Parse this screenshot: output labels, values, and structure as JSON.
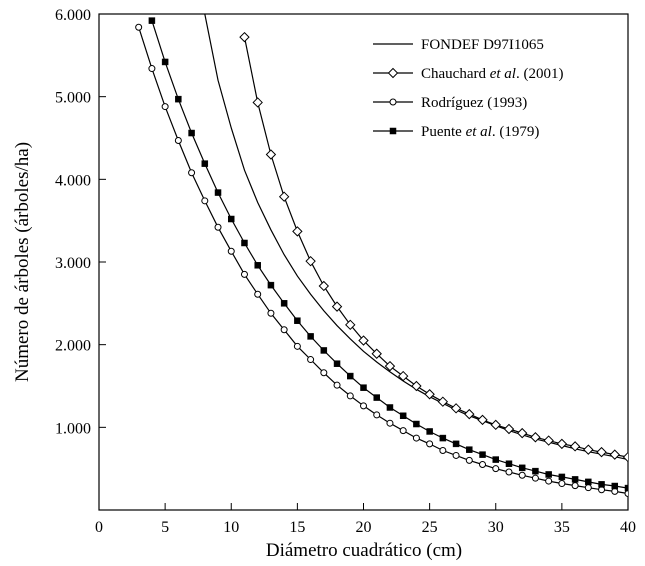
{
  "chart_data": {
    "type": "line",
    "title": "",
    "xlabel": "Diámetro cuadrático (cm)",
    "ylabel": "Número de árboles (árboles/ha)",
    "xlim": [
      0,
      40
    ],
    "ylim": [
      0,
      6000
    ],
    "x_ticks": [
      0,
      5,
      10,
      15,
      20,
      25,
      30,
      35,
      40
    ],
    "x_tick_labels": [
      "0",
      "5",
      "10",
      "15",
      "20",
      "25",
      "30",
      "35",
      "40"
    ],
    "y_ticks": [
      1000,
      2000,
      3000,
      4000,
      5000,
      6000
    ],
    "y_tick_labels": [
      "1.000",
      "2.000",
      "3.000",
      "4.000",
      "5.000",
      "6.000"
    ],
    "grid": false,
    "legend_position": "top-right",
    "series": [
      {
        "name": "FONDEF D97I1065",
        "marker": "none",
        "x": [
          8,
          9,
          10,
          11,
          12,
          13,
          14,
          15,
          16,
          17,
          18,
          19,
          20,
          21,
          22,
          23,
          24,
          25,
          26,
          27,
          28,
          29,
          30,
          31,
          32,
          33,
          34,
          35,
          36,
          37,
          38,
          39,
          40
        ],
        "values": [
          6000,
          5200,
          4620,
          4110,
          3720,
          3390,
          3090,
          2830,
          2610,
          2410,
          2230,
          2070,
          1920,
          1790,
          1670,
          1560,
          1460,
          1370,
          1290,
          1210,
          1140,
          1080,
          1020,
          960,
          910,
          860,
          820,
          780,
          740,
          705,
          675,
          645,
          610
        ]
      },
      {
        "name": "Chauchard et al. (2001)",
        "name_parts": [
          "Chauchard ",
          "et al",
          ". (2001)"
        ],
        "marker": "diamond",
        "x": [
          11,
          12,
          13,
          14,
          15,
          16,
          17,
          18,
          19,
          20,
          21,
          22,
          23,
          24,
          25,
          26,
          27,
          28,
          29,
          30,
          31,
          32,
          33,
          34,
          35,
          36,
          37,
          38,
          39,
          40
        ],
        "values": [
          5720,
          4930,
          4300,
          3790,
          3370,
          3010,
          2710,
          2460,
          2240,
          2050,
          1890,
          1740,
          1620,
          1500,
          1400,
          1310,
          1230,
          1160,
          1090,
          1030,
          980,
          930,
          880,
          840,
          800,
          770,
          730,
          700,
          670,
          640
        ]
      },
      {
        "name": "Rodríguez (1993)",
        "marker": "circle",
        "x": [
          3,
          4,
          5,
          6,
          7,
          8,
          9,
          10,
          11,
          12,
          13,
          14,
          15,
          16,
          17,
          18,
          19,
          20,
          21,
          22,
          23,
          24,
          25,
          26,
          27,
          28,
          29,
          30,
          31,
          32,
          33,
          34,
          35,
          36,
          37,
          38,
          39,
          40
        ],
        "values": [
          5840,
          5340,
          4880,
          4470,
          4080,
          3740,
          3420,
          3130,
          2850,
          2610,
          2380,
          2180,
          1980,
          1820,
          1660,
          1510,
          1380,
          1260,
          1150,
          1050,
          960,
          870,
          800,
          720,
          660,
          600,
          550,
          500,
          460,
          420,
          385,
          350,
          320,
          295,
          270,
          245,
          225,
          200
        ]
      },
      {
        "name": "Puente et al. (1979)",
        "name_parts": [
          "Puente ",
          "et al",
          ". (1979)"
        ],
        "marker": "square",
        "x": [
          4,
          5,
          6,
          7,
          8,
          9,
          10,
          11,
          12,
          13,
          14,
          15,
          16,
          17,
          18,
          19,
          20,
          21,
          22,
          23,
          24,
          25,
          26,
          27,
          28,
          29,
          30,
          31,
          32,
          33,
          34,
          35,
          36,
          37,
          38,
          39,
          40
        ],
        "values": [
          5920,
          5420,
          4970,
          4560,
          4190,
          3840,
          3520,
          3230,
          2960,
          2720,
          2500,
          2290,
          2100,
          1930,
          1770,
          1620,
          1480,
          1360,
          1240,
          1140,
          1040,
          950,
          870,
          800,
          730,
          670,
          610,
          560,
          510,
          470,
          430,
          400,
          370,
          340,
          310,
          290,
          265
        ]
      }
    ]
  }
}
